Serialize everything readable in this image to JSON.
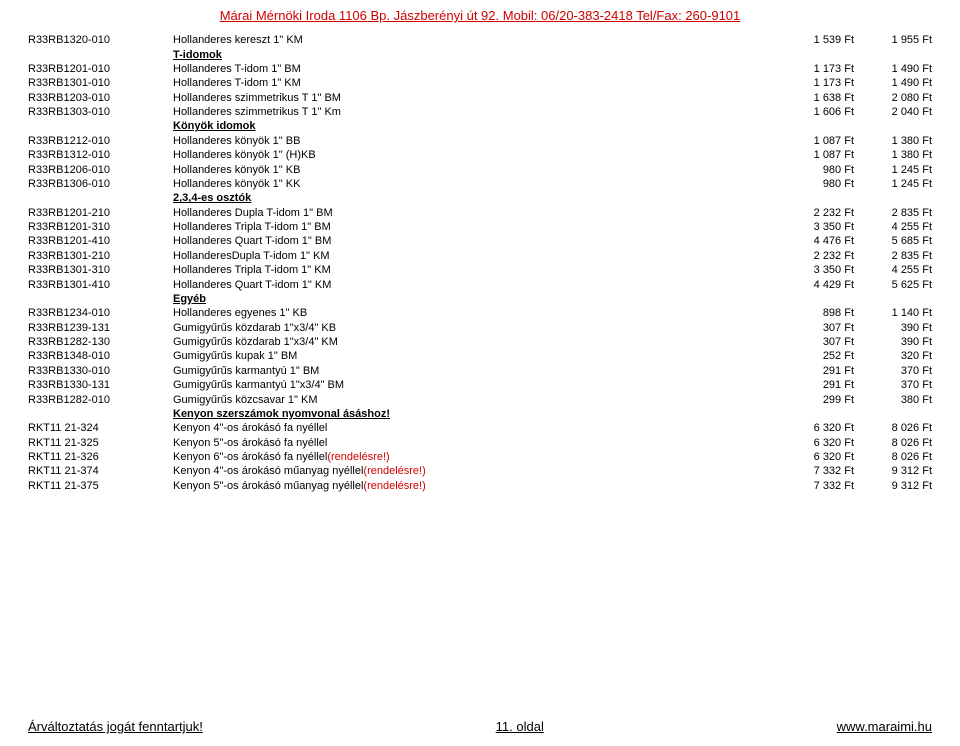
{
  "header": "Márai Mérnöki Iroda 1106 Bp. Jászberényi út 92. Mobil: 06/20-383-2418 Tel/Fax: 260-9101",
  "top_rows": [
    {
      "code": "R33RB1320-010",
      "desc": "Hollanderes kereszt 1\" KM",
      "p1": "1 539 Ft",
      "p2": "1 955 Ft"
    }
  ],
  "sections": [
    {
      "title": "T-idomok",
      "rows": [
        {
          "code": "R33RB1201-010",
          "desc": "Hollanderes T-idom 1\" BM",
          "p1": "1 173 Ft",
          "p2": "1 490 Ft"
        },
        {
          "code": "R33RB1301-010",
          "desc": "Hollanderes T-idom 1\" KM",
          "p1": "1 173 Ft",
          "p2": "1 490 Ft"
        },
        {
          "code": "R33RB1203-010",
          "desc": "Hollanderes szimmetrikus T 1\" BM",
          "p1": "1 638 Ft",
          "p2": "2 080 Ft"
        },
        {
          "code": "R33RB1303-010",
          "desc": "Hollanderes szimmetrikus T 1\" Km",
          "p1": "1 606 Ft",
          "p2": "2 040 Ft"
        }
      ]
    },
    {
      "title": "Könyök idomok",
      "rows": [
        {
          "code": "R33RB1212-010",
          "desc": "Hollanderes könyök 1\" BB",
          "p1": "1 087 Ft",
          "p2": "1 380 Ft"
        },
        {
          "code": "R33RB1312-010",
          "desc": "Hollanderes könyök 1\" (H)KB",
          "p1": "1 087 Ft",
          "p2": "1 380 Ft"
        },
        {
          "code": "R33RB1206-010",
          "desc": "Hollanderes könyök 1\" KB",
          "p1": "980 Ft",
          "p2": "1 245 Ft"
        },
        {
          "code": "R33RB1306-010",
          "desc": "Hollanderes könyök 1\" KK",
          "p1": "980 Ft",
          "p2": "1 245 Ft"
        }
      ]
    },
    {
      "title": "2,3,4-es osztók",
      "rows": [
        {
          "code": "R33RB1201-210",
          "desc": "Hollanderes Dupla T-idom 1\" BM",
          "p1": "2 232 Ft",
          "p2": "2 835 Ft"
        },
        {
          "code": "R33RB1201-310",
          "desc": "Hollanderes Tripla T-idom 1\" BM",
          "p1": "3 350 Ft",
          "p2": "4 255 Ft"
        },
        {
          "code": "R33RB1201-410",
          "desc": "Hollanderes Quart T-idom 1\" BM",
          "p1": "4 476 Ft",
          "p2": "5 685 Ft"
        },
        {
          "code": "R33RB1301-210",
          "desc": "HollanderesDupla T-idom 1\" KM",
          "p1": "2 232 Ft",
          "p2": "2 835 Ft"
        },
        {
          "code": "R33RB1301-310",
          "desc": "Hollanderes Tripla T-idom 1\" KM",
          "p1": "3 350 Ft",
          "p2": "4 255 Ft"
        },
        {
          "code": "R33RB1301-410",
          "desc": "Hollanderes Quart T-idom 1\" KM",
          "p1": "4 429 Ft",
          "p2": "5 625 Ft"
        }
      ]
    },
    {
      "title": "Egyéb",
      "rows": [
        {
          "code": "R33RB1234-010",
          "desc": "Hollanderes egyenes 1\" KB",
          "p1": "898 Ft",
          "p2": "1 140 Ft"
        },
        {
          "code": "R33RB1239-131",
          "desc": "Gumigyűrűs közdarab 1\"x3/4\" KB",
          "p1": "307 Ft",
          "p2": "390 Ft"
        },
        {
          "code": "R33RB1282-130",
          "desc": "Gumigyűrűs közdarab 1\"x3/4\" KM",
          "p1": "307 Ft",
          "p2": "390 Ft"
        },
        {
          "code": "R33RB1348-010",
          "desc": "Gumigyűrűs kupak 1\" BM",
          "p1": "252 Ft",
          "p2": "320 Ft"
        },
        {
          "code": "R33RB1330-010",
          "desc": "Gumigyűrűs karmantyú 1\" BM",
          "p1": "291 Ft",
          "p2": "370 Ft"
        },
        {
          "code": "R33RB1330-131",
          "desc": "Gumigyűrűs karmantyú 1\"x3/4\" BM",
          "p1": "291 Ft",
          "p2": "370 Ft"
        },
        {
          "code": "R33RB1282-010",
          "desc": "Gumigyűrűs közcsavar 1\" KM",
          "p1": "299 Ft",
          "p2": "380 Ft"
        }
      ]
    },
    {
      "title": "Kenyon szerszámok nyomvonal ásáshoz!",
      "rows": [
        {
          "code": "RKT11 21-324",
          "desc": "Kenyon 4\"-os árokásó fa nyéllel",
          "p1": "6 320 Ft",
          "p2": "8 026 Ft"
        },
        {
          "code": "RKT11 21-325",
          "desc": "Kenyon 5\"-os árokásó fa nyéllel",
          "p1": "6 320 Ft",
          "p2": "8 026 Ft"
        },
        {
          "code": "RKT11 21-326",
          "desc": "Kenyon 6\"-os árokásó fa nyéllel",
          "red_suffix": "(rendelésre!)",
          "p1": "6 320 Ft",
          "p2": "8 026 Ft"
        },
        {
          "code": "RKT11 21-374",
          "desc": "Kenyon 4\"-os árokásó műanyag nyéllel",
          "red_suffix": "(rendelésre!)",
          "p1": "7 332 Ft",
          "p2": "9 312 Ft"
        },
        {
          "code": "RKT11 21-375",
          "desc": "Kenyon 5\"-os árokásó műanyag nyéllel",
          "red_suffix": "(rendelésre!)",
          "p1": "7 332 Ft",
          "p2": "9 312 Ft"
        }
      ]
    }
  ],
  "footer": {
    "left": "Árváltoztatás jogát fenntartjuk!",
    "center": "11. oldal",
    "right": "www.maraimi.hu"
  }
}
